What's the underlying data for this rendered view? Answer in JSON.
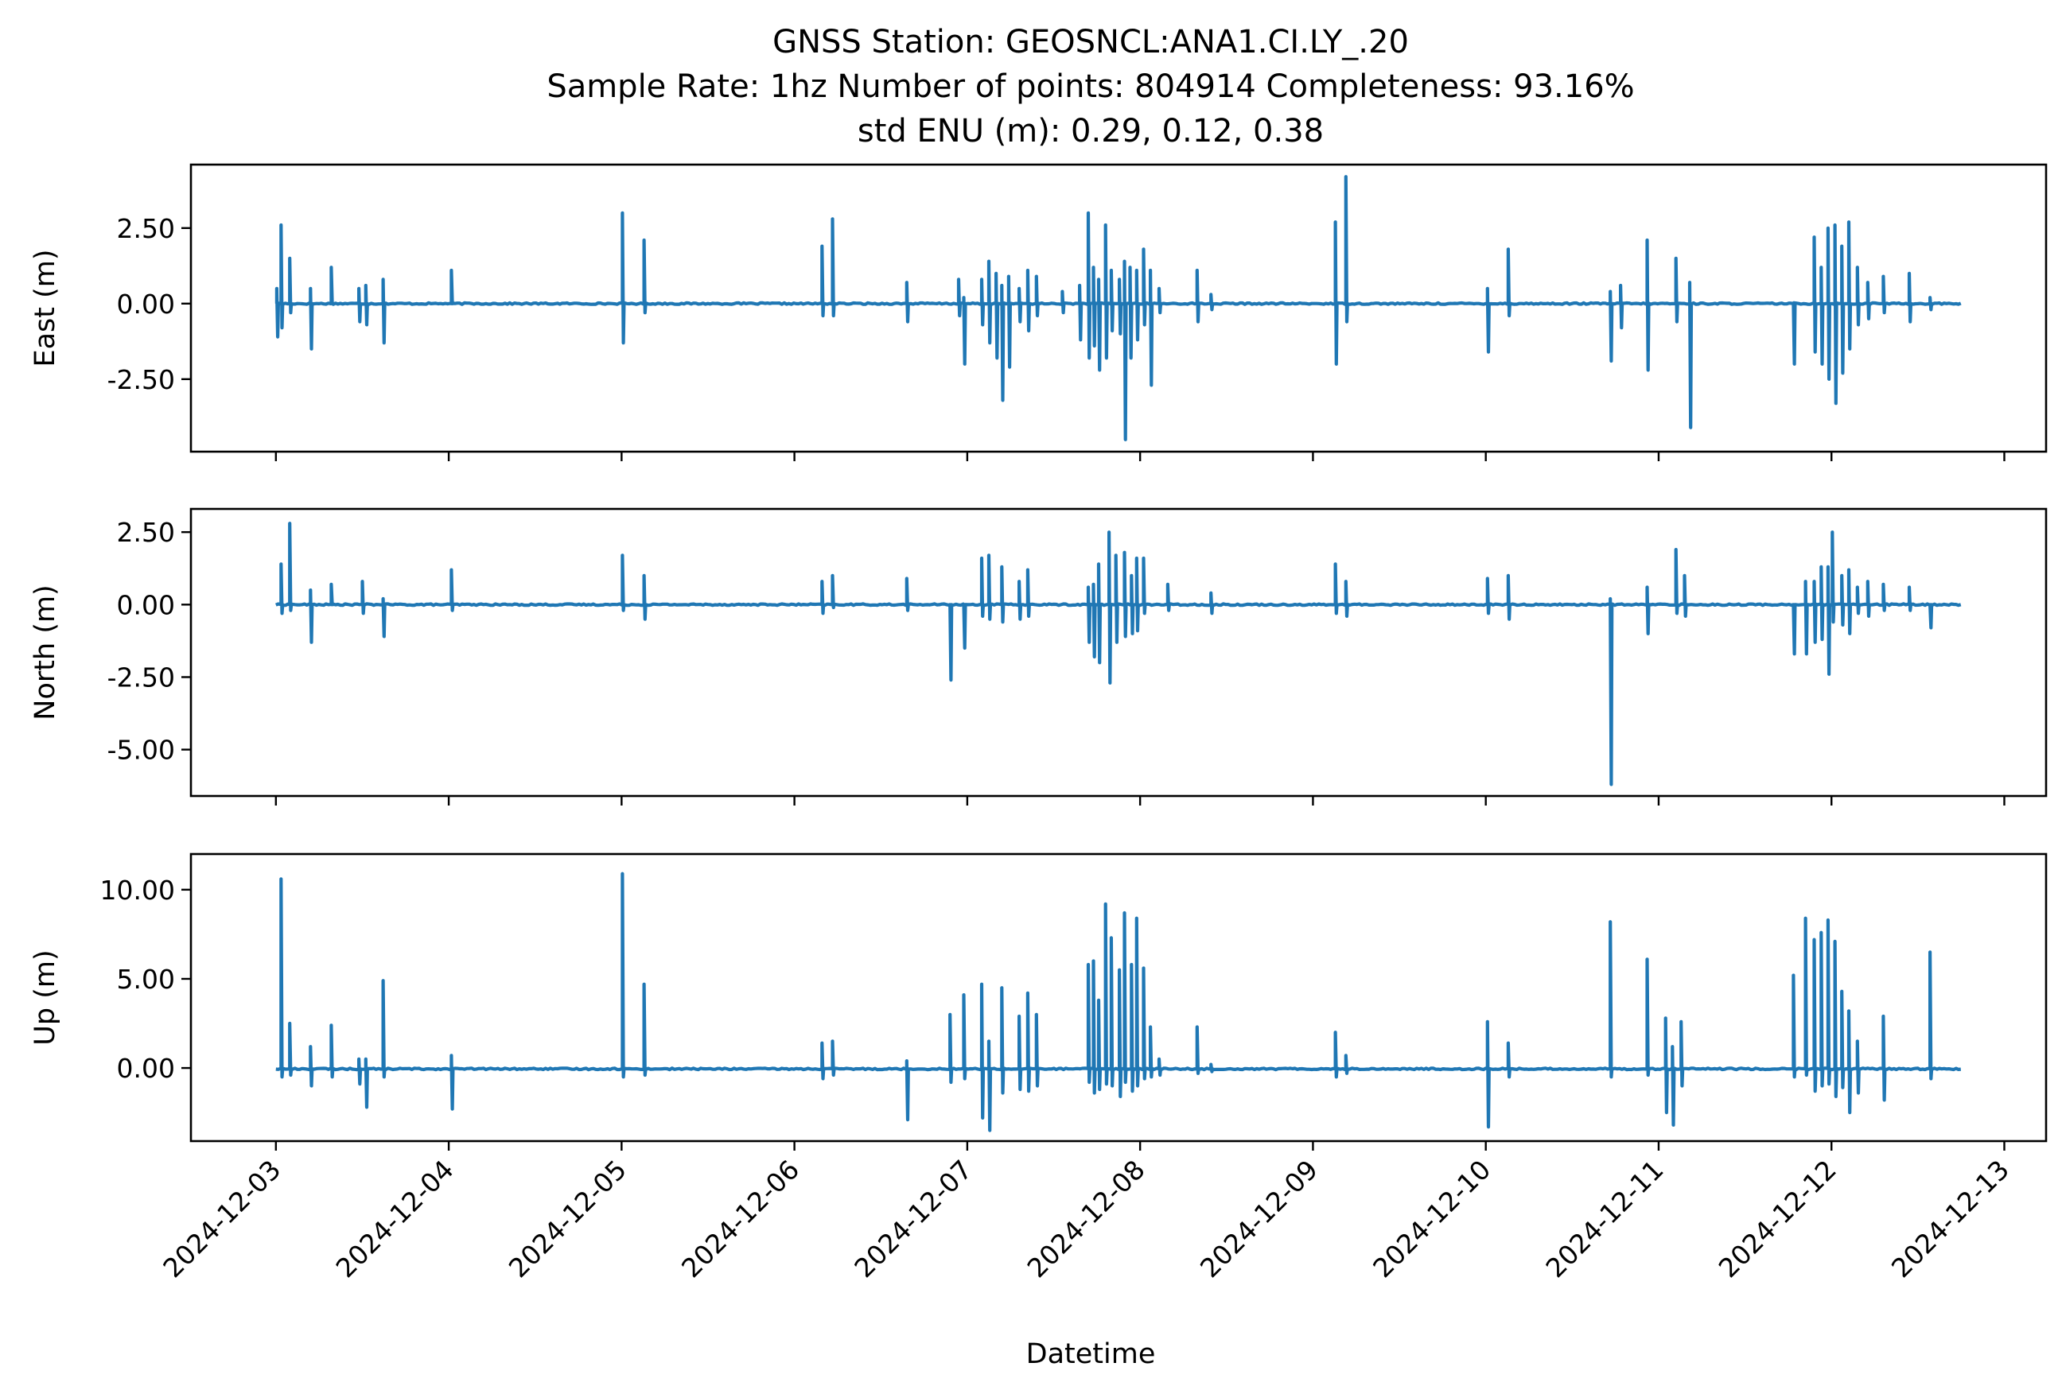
{
  "title_lines": [
    "GNSS Station: GEOSNCL:ANA1.CI.LY_.20",
    "Sample Rate: 1hz   Number of points: 804914    Completeness:  93.16%",
    "std ENU (m):  0.29, 0.12, 0.38"
  ],
  "xlabel": "Datetime",
  "x_tick_labels": [
    "2024-12-03",
    "2024-12-04",
    "2024-12-05",
    "2024-12-06",
    "2024-12-07",
    "2024-12-08",
    "2024-12-09",
    "2024-12-10",
    "2024-12-11",
    "2024-12-12",
    "2024-12-13"
  ],
  "colors": {
    "series": "#1f77b4",
    "axes": "#000000",
    "background": "#ffffff"
  },
  "chart_data": [
    {
      "type": "line",
      "ylabel": "East (m)",
      "xlim": [
        "2024-12-02T12:12",
        "2024-12-13T05:48"
      ],
      "ylim": [
        -4.9,
        4.6
      ],
      "yticks": [
        -2.5,
        0.0,
        2.5
      ],
      "ytick_labels": [
        "-2.50",
        "0.00",
        "2.50"
      ],
      "grid": false,
      "series": [
        {
          "baseline": 0.0,
          "x_range": [
            "2024-12-03T00:00",
            "2024-12-12T18:00"
          ],
          "spikes": [
            [
              "2024-12-03T00:07",
              0.5,
              -1.1
            ],
            [
              "2024-12-03T00:43",
              2.6,
              -0.8
            ],
            [
              "2024-12-03T01:55",
              1.5,
              -0.3
            ],
            [
              "2024-12-03T04:48",
              0.5,
              -1.5
            ],
            [
              "2024-12-03T07:41",
              1.2,
              0.0
            ],
            [
              "2024-12-03T11:31",
              0.5,
              -0.6
            ],
            [
              "2024-12-03T12:29",
              0.6,
              -0.7
            ],
            [
              "2024-12-03T14:53",
              0.8,
              -1.3
            ],
            [
              "2024-12-04T00:22",
              1.1,
              0.0
            ],
            [
              "2024-12-05T00:07",
              3.0,
              -1.3
            ],
            [
              "2024-12-05T03:07",
              2.1,
              -0.3
            ],
            [
              "2024-12-06T03:50",
              1.9,
              -0.4
            ],
            [
              "2024-12-06T05:17",
              2.8,
              -0.4
            ],
            [
              "2024-12-06T15:36",
              0.7,
              -0.6
            ],
            [
              "2024-12-06T22:48",
              0.8,
              -0.4
            ],
            [
              "2024-12-06T23:31",
              0.2,
              -2.0
            ],
            [
              "2024-12-07T02:00",
              0.8,
              -0.7
            ],
            [
              "2024-12-07T03:00",
              1.4,
              -1.3
            ],
            [
              "2024-12-07T04:00",
              1.0,
              -1.8
            ],
            [
              "2024-12-07T04:48",
              0.6,
              -3.2
            ],
            [
              "2024-12-07T05:45",
              0.9,
              -2.1
            ],
            [
              "2024-12-07T07:12",
              0.5,
              -0.6
            ],
            [
              "2024-12-07T08:24",
              1.1,
              -0.9
            ],
            [
              "2024-12-07T09:36",
              0.9,
              -0.4
            ],
            [
              "2024-12-07T13:12",
              0.4,
              -0.3
            ],
            [
              "2024-12-07T15:36",
              0.6,
              -1.2
            ],
            [
              "2024-12-07T16:48",
              3.0,
              -1.8
            ],
            [
              "2024-12-07T17:31",
              1.2,
              -1.4
            ],
            [
              "2024-12-07T18:14",
              0.8,
              -2.2
            ],
            [
              "2024-12-07T19:12",
              2.6,
              -1.8
            ],
            [
              "2024-12-07T20:00",
              1.1,
              -0.9
            ],
            [
              "2024-12-07T21:07",
              0.8,
              -1.0
            ],
            [
              "2024-12-07T21:50",
              1.4,
              -4.5
            ],
            [
              "2024-12-07T22:36",
              1.2,
              -1.8
            ],
            [
              "2024-12-07T23:31",
              1.1,
              -1.2
            ],
            [
              "2024-12-08T00:29",
              1.8,
              -0.7
            ],
            [
              "2024-12-08T01:26",
              1.1,
              -2.7
            ],
            [
              "2024-12-08T02:38",
              0.5,
              -0.3
            ],
            [
              "2024-12-08T07:55",
              1.1,
              -0.6
            ],
            [
              "2024-12-08T09:50",
              0.3,
              -0.2
            ],
            [
              "2024-12-09T03:07",
              2.7,
              -2.0
            ],
            [
              "2024-12-09T04:34",
              4.2,
              -0.6
            ],
            [
              "2024-12-10T00:14",
              0.5,
              -1.6
            ],
            [
              "2024-12-10T03:07",
              1.8,
              -0.4
            ],
            [
              "2024-12-10T17:17",
              0.4,
              -1.9
            ],
            [
              "2024-12-10T18:43",
              0.6,
              -0.8
            ],
            [
              "2024-12-10T22:24",
              2.1,
              -2.2
            ],
            [
              "2024-12-11T02:24",
              1.5,
              -0.6
            ],
            [
              "2024-12-11T04:19",
              0.7,
              -4.1
            ],
            [
              "2024-12-11T18:43",
              0.0,
              -2.0
            ],
            [
              "2024-12-11T21:36",
              2.2,
              -1.6
            ],
            [
              "2024-12-11T22:34",
              1.2,
              -2.0
            ],
            [
              "2024-12-11T23:31",
              2.5,
              -2.5
            ],
            [
              "2024-12-12T00:29",
              2.6,
              -3.3
            ],
            [
              "2024-12-12T01:26",
              1.9,
              -2.3
            ],
            [
              "2024-12-12T02:24",
              2.7,
              -1.5
            ],
            [
              "2024-12-12T03:36",
              1.2,
              -0.7
            ],
            [
              "2024-12-12T05:02",
              0.7,
              -0.5
            ],
            [
              "2024-12-12T07:12",
              0.9,
              -0.3
            ],
            [
              "2024-12-12T10:48",
              1.0,
              -0.6
            ],
            [
              "2024-12-12T13:41",
              0.2,
              -0.2
            ]
          ]
        }
      ]
    },
    {
      "type": "line",
      "ylabel": "North (m)",
      "xlim": [
        "2024-12-02T12:12",
        "2024-12-13T05:48"
      ],
      "ylim": [
        -6.6,
        3.3
      ],
      "yticks": [
        -5.0,
        -2.5,
        0.0,
        2.5
      ],
      "ytick_labels": [
        "-5.00",
        "-2.50",
        "0.00",
        "2.50"
      ],
      "grid": false,
      "series": [
        {
          "baseline": 0.0,
          "x_range": [
            "2024-12-03T00:00",
            "2024-12-12T18:00"
          ],
          "spikes": [
            [
              "2024-12-03T00:43",
              1.4,
              -0.3
            ],
            [
              "2024-12-03T01:55",
              2.8,
              -0.2
            ],
            [
              "2024-12-03T04:48",
              0.5,
              -1.3
            ],
            [
              "2024-12-03T07:41",
              0.7,
              0.0
            ],
            [
              "2024-12-03T12:00",
              0.8,
              -0.3
            ],
            [
              "2024-12-03T14:53",
              0.2,
              -1.1
            ],
            [
              "2024-12-04T00:22",
              1.2,
              -0.2
            ],
            [
              "2024-12-05T00:07",
              1.7,
              -0.2
            ],
            [
              "2024-12-05T03:07",
              1.0,
              -0.5
            ],
            [
              "2024-12-06T03:50",
              0.8,
              -0.3
            ],
            [
              "2024-12-06T05:17",
              1.0,
              -0.1
            ],
            [
              "2024-12-06T15:36",
              0.9,
              -0.2
            ],
            [
              "2024-12-06T21:36",
              0.0,
              -2.6
            ],
            [
              "2024-12-06T23:31",
              0.0,
              -1.5
            ],
            [
              "2024-12-07T02:00",
              1.6,
              -0.4
            ],
            [
              "2024-12-07T03:00",
              1.7,
              -0.5
            ],
            [
              "2024-12-07T04:48",
              1.3,
              -0.6
            ],
            [
              "2024-12-07T07:12",
              0.8,
              -0.5
            ],
            [
              "2024-12-07T08:24",
              1.2,
              -0.4
            ],
            [
              "2024-12-07T16:48",
              0.6,
              -1.3
            ],
            [
              "2024-12-07T17:31",
              0.7,
              -1.8
            ],
            [
              "2024-12-07T18:14",
              1.4,
              -2.0
            ],
            [
              "2024-12-07T19:41",
              2.5,
              -2.7
            ],
            [
              "2024-12-07T20:38",
              1.7,
              -1.3
            ],
            [
              "2024-12-07T21:50",
              1.8,
              -1.1
            ],
            [
              "2024-12-07T22:48",
              1.0,
              -1.0
            ],
            [
              "2024-12-07T23:31",
              1.6,
              -0.9
            ],
            [
              "2024-12-08T00:29",
              1.6,
              -0.3
            ],
            [
              "2024-12-08T03:50",
              0.7,
              -0.2
            ],
            [
              "2024-12-08T09:50",
              0.4,
              -0.3
            ],
            [
              "2024-12-09T03:07",
              1.4,
              -0.3
            ],
            [
              "2024-12-09T04:34",
              0.8,
              -0.4
            ],
            [
              "2024-12-10T00:14",
              0.9,
              -0.3
            ],
            [
              "2024-12-10T03:07",
              1.0,
              -0.5
            ],
            [
              "2024-12-10T17:17",
              0.2,
              -6.2
            ],
            [
              "2024-12-10T22:24",
              0.6,
              -1.0
            ],
            [
              "2024-12-11T02:24",
              1.9,
              -0.3
            ],
            [
              "2024-12-11T03:36",
              1.0,
              -0.4
            ],
            [
              "2024-12-11T18:43",
              0.0,
              -1.7
            ],
            [
              "2024-12-11T20:24",
              0.8,
              -1.7
            ],
            [
              "2024-12-11T21:36",
              0.8,
              -1.3
            ],
            [
              "2024-12-11T22:34",
              1.3,
              -1.2
            ],
            [
              "2024-12-11T23:31",
              1.3,
              -2.4
            ],
            [
              "2024-12-12T00:07",
              2.5,
              -0.6
            ],
            [
              "2024-12-12T01:26",
              1.0,
              -0.7
            ],
            [
              "2024-12-12T02:24",
              1.2,
              -1.0
            ],
            [
              "2024-12-12T03:36",
              0.6,
              -0.3
            ],
            [
              "2024-12-12T05:02",
              0.8,
              -0.4
            ],
            [
              "2024-12-12T07:12",
              0.7,
              -0.2
            ],
            [
              "2024-12-12T10:48",
              0.6,
              -0.2
            ],
            [
              "2024-12-12T13:41",
              0.0,
              -0.8
            ]
          ]
        }
      ]
    },
    {
      "type": "line",
      "ylabel": "Up (m)",
      "xlim": [
        "2024-12-02T12:12",
        "2024-12-13T05:48"
      ],
      "ylim": [
        -4.1,
        12.0
      ],
      "yticks": [
        0.0,
        5.0,
        10.0
      ],
      "ytick_labels": [
        "0.00",
        "5.00",
        "10.00"
      ],
      "grid": false,
      "series": [
        {
          "baseline": -0.05,
          "x_range": [
            "2024-12-03T00:00",
            "2024-12-12T18:00"
          ],
          "spikes": [
            [
              "2024-12-03T00:43",
              10.6,
              -0.5
            ],
            [
              "2024-12-03T01:55",
              2.5,
              -0.4
            ],
            [
              "2024-12-03T04:48",
              1.2,
              -1.0
            ],
            [
              "2024-12-03T07:41",
              2.4,
              -0.5
            ],
            [
              "2024-12-03T11:31",
              0.5,
              -0.9
            ],
            [
              "2024-12-03T12:29",
              0.5,
              -2.2
            ],
            [
              "2024-12-03T14:53",
              4.9,
              -0.5
            ],
            [
              "2024-12-04T00:22",
              0.7,
              -2.3
            ],
            [
              "2024-12-05T00:07",
              10.9,
              -0.5
            ],
            [
              "2024-12-05T03:07",
              4.7,
              -0.4
            ],
            [
              "2024-12-06T03:50",
              1.4,
              -0.6
            ],
            [
              "2024-12-06T05:17",
              1.5,
              -0.4
            ],
            [
              "2024-12-06T15:36",
              0.4,
              -2.9
            ],
            [
              "2024-12-06T21:36",
              3.0,
              -0.8
            ],
            [
              "2024-12-06T23:31",
              4.1,
              -0.6
            ],
            [
              "2024-12-07T02:00",
              4.7,
              -2.8
            ],
            [
              "2024-12-07T03:00",
              1.5,
              -3.5
            ],
            [
              "2024-12-07T04:48",
              4.5,
              -1.4
            ],
            [
              "2024-12-07T07:12",
              2.9,
              -1.2
            ],
            [
              "2024-12-07T08:24",
              4.2,
              -1.3
            ],
            [
              "2024-12-07T09:36",
              3.0,
              -1.0
            ],
            [
              "2024-12-07T16:48",
              5.8,
              -0.8
            ],
            [
              "2024-12-07T17:31",
              6.0,
              -1.4
            ],
            [
              "2024-12-07T18:14",
              3.8,
              -1.2
            ],
            [
              "2024-12-07T19:12",
              9.2,
              -0.9
            ],
            [
              "2024-12-07T20:00",
              7.3,
              -1.0
            ],
            [
              "2024-12-07T21:07",
              5.5,
              -1.6
            ],
            [
              "2024-12-07T21:50",
              8.7,
              -0.8
            ],
            [
              "2024-12-07T22:48",
              5.8,
              -1.3
            ],
            [
              "2024-12-07T23:31",
              8.4,
              -1.0
            ],
            [
              "2024-12-08T00:29",
              5.6,
              -0.6
            ],
            [
              "2024-12-08T01:26",
              2.3,
              -0.5
            ],
            [
              "2024-12-08T02:38",
              0.5,
              -0.4
            ],
            [
              "2024-12-08T07:55",
              2.3,
              -0.3
            ],
            [
              "2024-12-08T09:50",
              0.2,
              -0.2
            ],
            [
              "2024-12-09T03:07",
              2.0,
              -0.5
            ],
            [
              "2024-12-09T04:34",
              0.7,
              -0.3
            ],
            [
              "2024-12-10T00:14",
              2.6,
              -3.3
            ],
            [
              "2024-12-10T03:07",
              1.4,
              -0.5
            ],
            [
              "2024-12-10T17:17",
              8.2,
              -0.5
            ],
            [
              "2024-12-10T22:24",
              6.1,
              -0.4
            ],
            [
              "2024-12-11T00:58",
              2.8,
              -2.5
            ],
            [
              "2024-12-11T01:55",
              1.2,
              -3.2
            ],
            [
              "2024-12-11T03:07",
              2.6,
              -1.0
            ],
            [
              "2024-12-11T18:43",
              5.2,
              -0.5
            ],
            [
              "2024-12-11T20:24",
              8.4,
              -0.4
            ],
            [
              "2024-12-11T21:36",
              7.2,
              -1.3
            ],
            [
              "2024-12-11T22:34",
              7.6,
              -1.0
            ],
            [
              "2024-12-11T23:31",
              8.3,
              -0.9
            ],
            [
              "2024-12-12T00:29",
              7.1,
              -1.6
            ],
            [
              "2024-12-12T01:26",
              4.3,
              -1.1
            ],
            [
              "2024-12-12T02:24",
              3.2,
              -2.5
            ],
            [
              "2024-12-12T03:36",
              1.5,
              -1.4
            ],
            [
              "2024-12-12T07:12",
              2.9,
              -1.8
            ],
            [
              "2024-12-12T13:41",
              6.5,
              -0.6
            ]
          ]
        }
      ]
    }
  ]
}
